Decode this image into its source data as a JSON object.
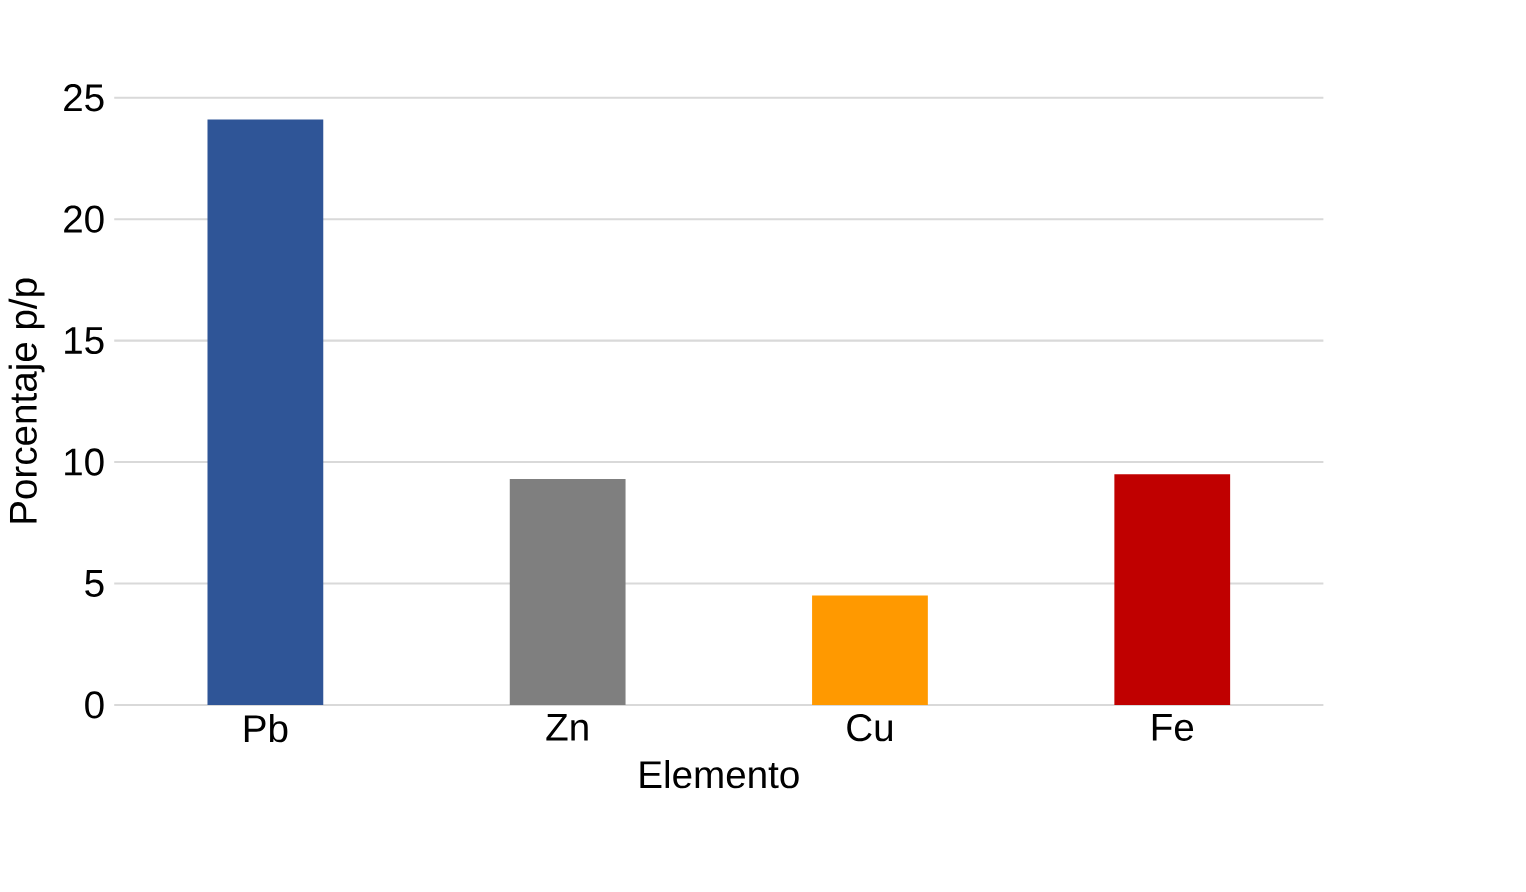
{
  "chart_data": {
    "type": "bar",
    "xlabel": "Elemento",
    "ylabel": "Porcentaje p/p",
    "categories": [
      "Pb",
      "Zn",
      "Cu",
      "Fe"
    ],
    "values": [
      24.1,
      9.3,
      4.5,
      9.5
    ],
    "colors": [
      "#2f5597",
      "#7f7f7f",
      "#ff9900",
      "#c00000"
    ],
    "ylim": [
      0,
      25
    ],
    "yticks": [
      0,
      5,
      10,
      15,
      20,
      25
    ],
    "grid": "y"
  }
}
